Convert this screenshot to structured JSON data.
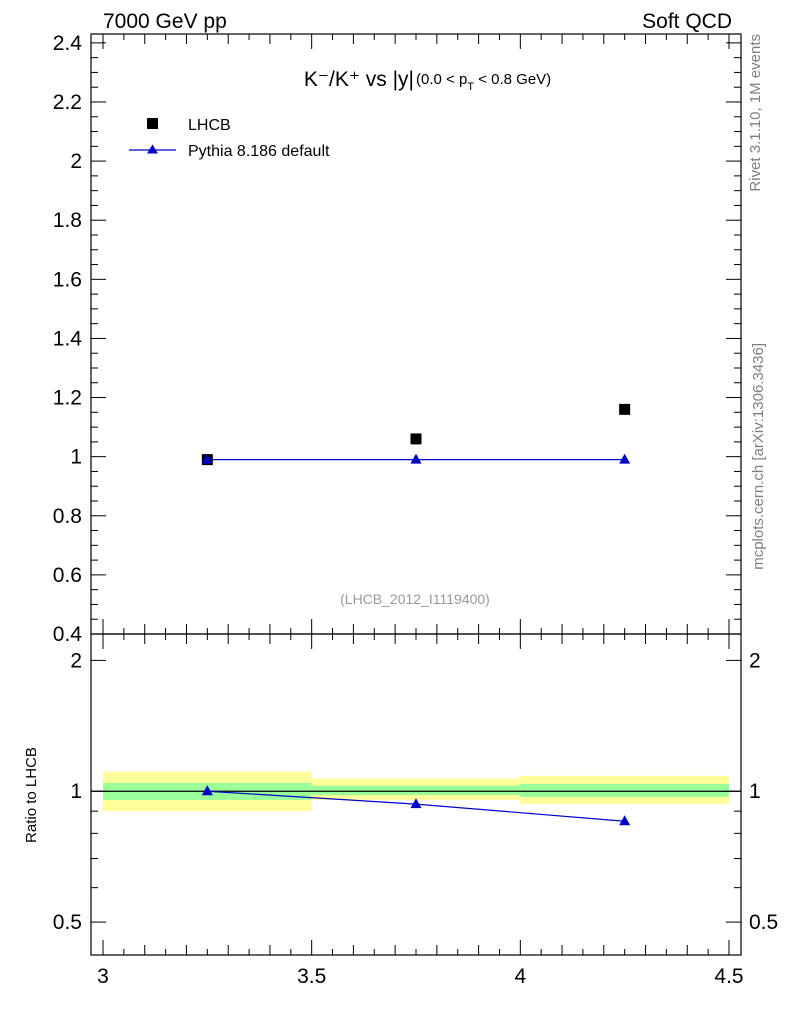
{
  "header": {
    "left": "7000 GeV pp",
    "right": "Soft QCD"
  },
  "side_labels": {
    "rivet": "Rivet 3.1.10,  1M events",
    "mcplots": "mcplots.cern.ch [arXiv:1306.3436]"
  },
  "chart_data": [
    {
      "type": "scatter",
      "title": {
        "main": "K⁻/K⁺ vs |y|",
        "cut_open": "(0.0 < p",
        "cut_sub": "T",
        "cut_close": " < 0.8 GeV)"
      },
      "watermark": "(LHCB_2012_I1119400)",
      "xlim": [
        3,
        4.5
      ],
      "ylim": [
        0.4,
        2.43
      ],
      "yticks": [
        "0.4",
        "0.6",
        "0.8",
        "1",
        "1.2",
        "1.4",
        "1.6",
        "1.8",
        "2",
        "2.2",
        "2.4"
      ],
      "grid": false,
      "legend_position": "top-left",
      "series": [
        {
          "name": "LHCB",
          "kind": "data",
          "marker": "square",
          "color": "#000000",
          "x": [
            3.25,
            3.75,
            4.25
          ],
          "y": [
            0.99,
            1.06,
            1.16
          ]
        },
        {
          "name": "Pythia 8.186 default",
          "kind": "mc",
          "marker": "triangle",
          "color": "#0000cc",
          "x": [
            3.25,
            3.75,
            4.25
          ],
          "y": [
            0.99,
            0.99,
            0.99
          ]
        }
      ]
    },
    {
      "type": "line",
      "ylabel": "Ratio to LHCB",
      "xlim": [
        3,
        4.5
      ],
      "ylim": [
        0.42,
        2.3
      ],
      "yscale": "log",
      "xticks": [
        "3",
        "3.5",
        "4",
        "4.5"
      ],
      "yticks": [
        "0.5",
        "1",
        "2"
      ],
      "band_colors": {
        "inner": "#99ff99",
        "outer": "#ffff99"
      },
      "bands": [
        {
          "x": [
            3.0,
            3.5
          ],
          "inner": [
            0.955,
            1.045
          ],
          "outer": [
            0.9,
            1.11
          ]
        },
        {
          "x": [
            3.5,
            4.0
          ],
          "inner": [
            0.98,
            1.03
          ],
          "outer": [
            0.955,
            1.07
          ]
        },
        {
          "x": [
            4.0,
            4.5
          ],
          "inner": [
            0.97,
            1.04
          ],
          "outer": [
            0.935,
            1.085
          ]
        }
      ],
      "reference_line": 1,
      "series": [
        {
          "name": "Pythia 8.186 default",
          "color": "#0000cc",
          "x": [
            3.25,
            3.75,
            4.25
          ],
          "y": [
            1.0,
            0.934,
            0.853
          ]
        }
      ]
    }
  ]
}
